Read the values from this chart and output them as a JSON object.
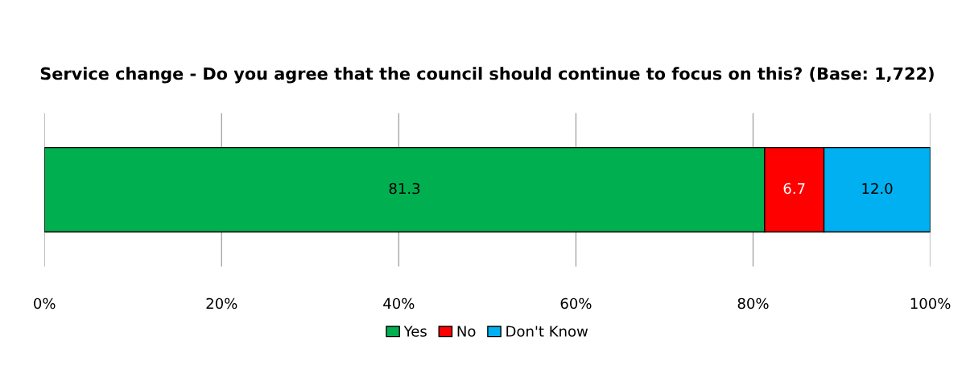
{
  "chart_data": {
    "type": "bar",
    "orientation": "horizontal",
    "stacked": true,
    "title": "Service change - Do you agree that the council should continue to focus on this? (Base: 1,722)",
    "categories": [
      null
    ],
    "series": [
      {
        "name": "Yes",
        "color": "#00b050",
        "values": [
          81.3
        ],
        "value_labels": [
          "81.3"
        ]
      },
      {
        "name": "No",
        "color": "#ff0000",
        "values": [
          6.7
        ],
        "value_labels": [
          "6.7"
        ]
      },
      {
        "name": "Don't Know",
        "color": "#00b0f0",
        "values": [
          12.0
        ],
        "value_labels": [
          "12.0"
        ]
      }
    ],
    "xlim": [
      0,
      100
    ],
    "xticks": [
      {
        "value": 0,
        "label": "0%"
      },
      {
        "value": 20,
        "label": "20%"
      },
      {
        "value": 40,
        "label": "40%"
      },
      {
        "value": 60,
        "label": "60%"
      },
      {
        "value": 80,
        "label": "80%"
      },
      {
        "value": 100,
        "label": "100%"
      }
    ],
    "grid": "x",
    "legend": "bottom"
  }
}
